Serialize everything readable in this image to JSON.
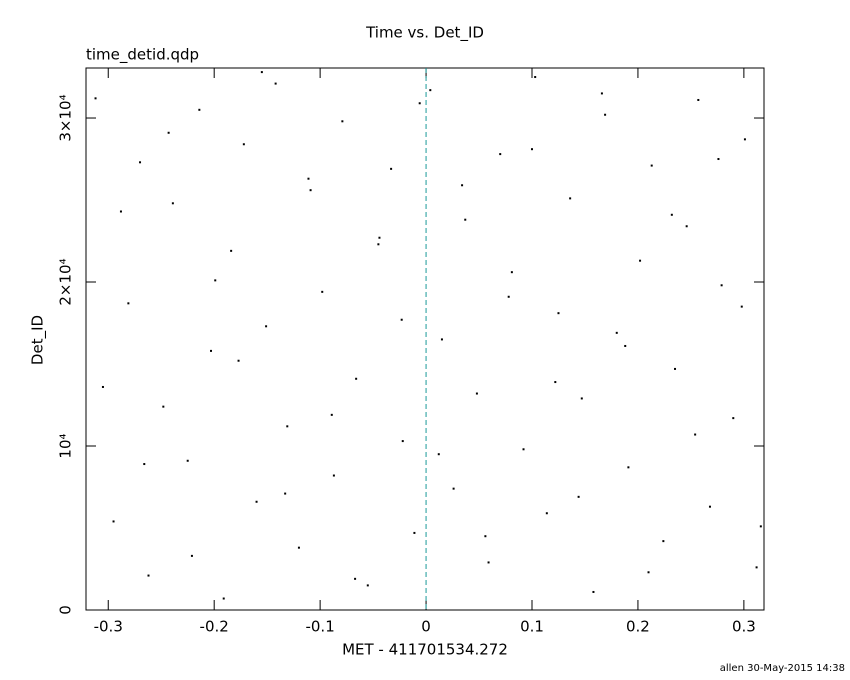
{
  "chart_data": {
    "type": "scatter",
    "title": "Time vs. Det_ID",
    "subtitle": "time_detid.qdp",
    "xlabel": "MET - 411701534.272",
    "ylabel": "Det_ID",
    "footer": "allen 30-May-2015 14:38",
    "xlim": [
      -0.321,
      0.319
    ],
    "ylim": [
      0,
      33050
    ],
    "xticks": [
      -0.3,
      -0.2,
      -0.1,
      0,
      0.1,
      0.2,
      0.3
    ],
    "yticks": [
      0,
      {
        "value": 10000,
        "label": "10⁴"
      },
      {
        "value": 20000,
        "label": "2×10⁴"
      },
      {
        "value": 30000,
        "label": "3×10⁴"
      }
    ],
    "reference_line": {
      "x": 0,
      "color": "#1a9a9a"
    },
    "series": [
      {
        "color": "#000000",
        "x": [
          -0.312,
          -0.295,
          -0.281,
          -0.27,
          -0.262,
          -0.248,
          -0.239,
          -0.225,
          -0.214,
          -0.203,
          -0.191,
          -0.184,
          -0.172,
          -0.16,
          -0.151,
          -0.142,
          -0.131,
          -0.12,
          -0.109,
          -0.098,
          -0.087,
          -0.079,
          -0.066,
          -0.055,
          -0.044,
          -0.033,
          -0.022,
          -0.011,
          0.004,
          0.015,
          0.026,
          0.037,
          0.048,
          0.059,
          0.07,
          0.081,
          0.092,
          0.103,
          0.114,
          0.125,
          0.136,
          0.147,
          0.158,
          0.169,
          0.18,
          0.191,
          0.202,
          0.213,
          0.224,
          0.235,
          0.246,
          0.257,
          0.268,
          0.279,
          0.29,
          0.301,
          0.312,
          -0.305,
          -0.288,
          -0.266,
          -0.243,
          -0.221,
          -0.199,
          -0.177,
          -0.155,
          -0.133,
          -0.111,
          -0.089,
          -0.067,
          -0.045,
          -0.023,
          -0.006,
          0.012,
          0.034,
          0.056,
          0.078,
          0.1,
          0.122,
          0.144,
          0.166,
          0.188,
          0.21,
          0.232,
          0.254,
          0.276,
          0.298,
          0.316
        ],
        "values": [
          31200,
          5400,
          18700,
          27300,
          2100,
          12400,
          24800,
          9100,
          30500,
          15800,
          700,
          21900,
          28400,
          6600,
          17300,
          32100,
          11200,
          3800,
          25600,
          19400,
          8200,
          29800,
          14100,
          1500,
          22700,
          26900,
          10300,
          4700,
          31700,
          16500,
          7400,
          23800,
          13200,
          2900,
          27800,
          20600,
          9800,
          32500,
          5900,
          18100,
          25100,
          12900,
          1100,
          30200,
          16900,
          8700,
          21300,
          27100,
          4200,
          14700,
          23400,
          31100,
          6300,
          19800,
          11700,
          28700,
          2600,
          13600,
          24300,
          8900,
          29100,
          3300,
          20100,
          15200,
          32800,
          7100,
          26300,
          11900,
          1900,
          22300,
          17700,
          30900,
          9500,
          25900,
          4500,
          19100,
          28100,
          13900,
          6900,
          31500,
          16100,
          2300,
          24100,
          10700,
          27500,
          18500,
          5100
        ]
      }
    ]
  }
}
